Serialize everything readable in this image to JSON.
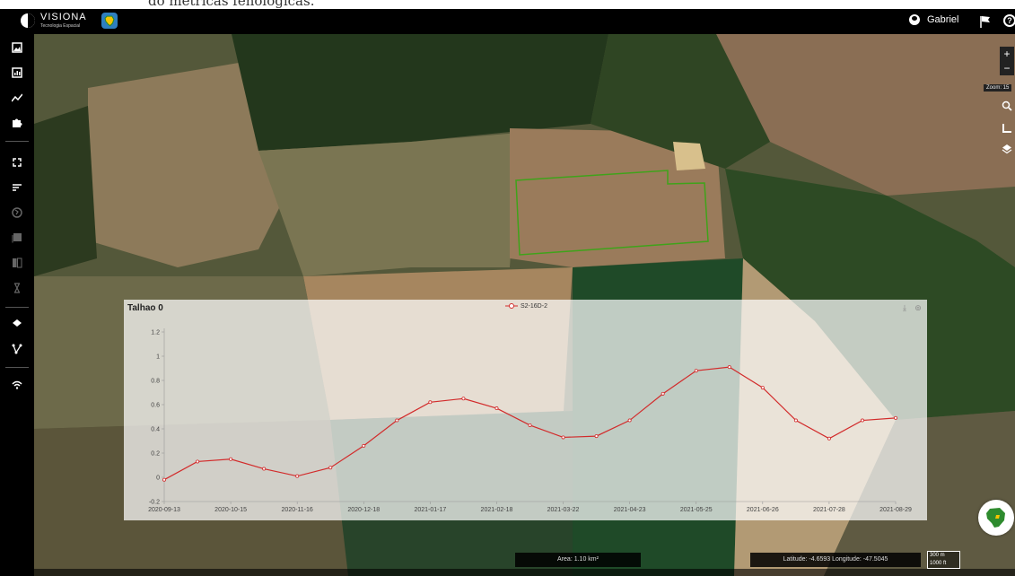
{
  "page_heading_fragment": "do métricas fenológicas.",
  "header": {
    "brand_name": "VISIONA",
    "brand_tagline": "Tecnologia Espacial",
    "user_name": "Gabriel",
    "flag_icon": "flag-icon",
    "help_icon": "question-circle-icon"
  },
  "sidebar": {
    "items": [
      {
        "name": "image-icon"
      },
      {
        "name": "bar-chart-icon"
      },
      {
        "name": "line-chart-icon"
      },
      {
        "name": "puzzle-icon"
      },
      {
        "name": "expand-icon"
      },
      {
        "name": "sort-icon"
      },
      {
        "name": "globe-icon"
      },
      {
        "name": "gallery-icon"
      },
      {
        "name": "compare-icon"
      },
      {
        "name": "hourglass-icon"
      },
      {
        "name": "layers-icon"
      },
      {
        "name": "route-icon"
      },
      {
        "name": "wifi-icon"
      }
    ]
  },
  "map": {
    "zoom_in": "+",
    "zoom_out": "−",
    "zoom_label": "Zoom: 15",
    "area": "Area: 1.10 km²",
    "coordinates": "Latitude: -4.6593 Longitude: -47.5045",
    "scale_metric": "300 m",
    "scale_imperial": "1000 ft",
    "field_outline_color": "#3fa31a"
  },
  "chart_panel": {
    "title": "Talhao 0",
    "download_icon": "download-icon",
    "settings_icon": "settings-icon"
  },
  "chart_data": {
    "type": "line",
    "series": [
      {
        "name": "S2-16D-2",
        "color": "#d22b2b",
        "values": [
          -0.02,
          0.13,
          0.15,
          0.07,
          0.01,
          0.08,
          0.26,
          0.47,
          0.62,
          0.65,
          0.57,
          0.43,
          0.33,
          0.34,
          0.47,
          0.69,
          0.88,
          0.91,
          0.74,
          0.47,
          0.32,
          0.47,
          0.49
        ]
      }
    ],
    "x_labels": [
      "2020-09-13",
      "2020-10-15",
      "2020-11-16",
      "2020-12-18",
      "2021-01-17",
      "2021-02-18",
      "2021-03-22",
      "2021-04-23",
      "2021-05-25",
      "2021-06-26",
      "2021-07-28",
      "2021-08-29"
    ],
    "y_ticks": [
      "1.2",
      "1",
      "0.8",
      "0.6",
      "0.4",
      "0.2",
      "0",
      "-0.2"
    ],
    "ylim": [
      -0.2,
      1.2
    ],
    "grid": false,
    "legend": "top-center"
  }
}
